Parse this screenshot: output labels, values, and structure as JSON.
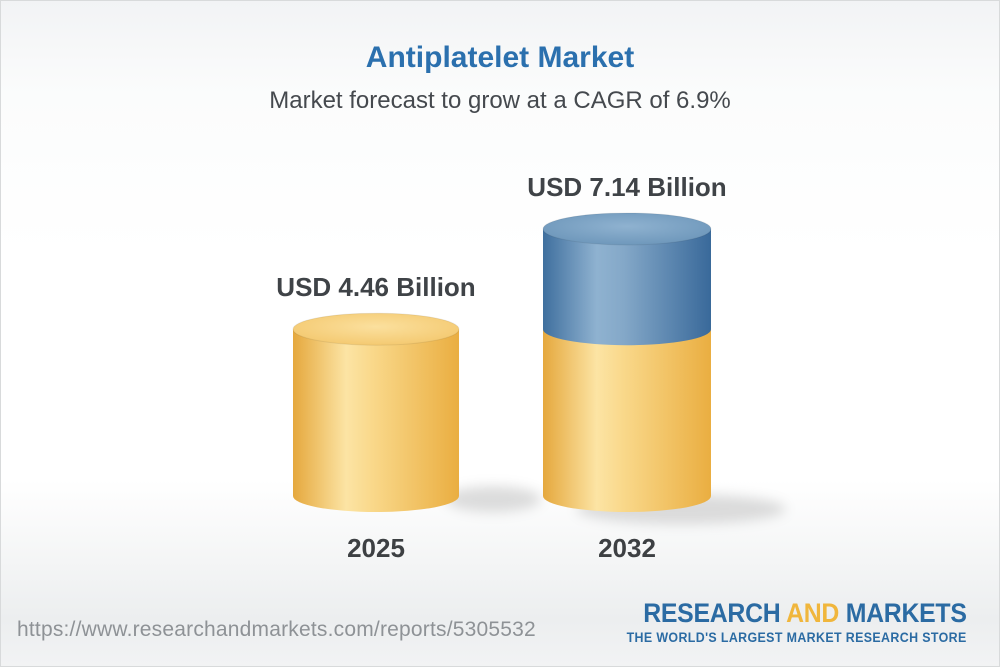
{
  "header": {
    "title": "Antiplatelet Market",
    "subtitle": "Market forecast to grow at a CAGR of 6.9%"
  },
  "chart_data": {
    "type": "bar",
    "subtype": "3d-cylinder-stacked",
    "title": "Antiplatelet Market",
    "subtitle": "Market forecast to grow at a CAGR of 6.9%",
    "unit": "USD Billion",
    "cagr_percent": 6.9,
    "categories": [
      "2025",
      "2032"
    ],
    "values": [
      4.46,
      7.14
    ],
    "value_labels": [
      "USD 4.46 Billion",
      "USD 7.14 Billion"
    ],
    "bars": [
      {
        "category": "2025",
        "segments": [
          {
            "palette": "yellow",
            "value": 4.46
          }
        ]
      },
      {
        "category": "2032",
        "segments": [
          {
            "palette": "yellow",
            "value": 4.46
          },
          {
            "palette": "blue",
            "value": 2.68
          }
        ]
      }
    ],
    "palette": {
      "yellow": {
        "body": [
          "#e5a83d",
          "#fce4a4",
          "#f9d88a",
          "#eaae41"
        ],
        "top": [
          "#fbe09e",
          "#f2c364"
        ]
      },
      "blue": {
        "body": [
          "#3f6f9e",
          "#8fb2d0",
          "#84a8c8",
          "#39699a"
        ],
        "top": [
          "#8fb2d0",
          "#6590b5"
        ]
      }
    },
    "axis": {
      "grid": false,
      "baseline_value": 0
    }
  },
  "footer": {
    "url": "https://www.researchandmarkets.com/reports/5305532",
    "logo": {
      "part1": "RESEARCH",
      "part2": "AND",
      "part3": "MARKETS",
      "tagline": "THE WORLD'S LARGEST MARKET RESEARCH STORE"
    }
  },
  "colors": {
    "title_blue": "#2b70ae",
    "text_dark": "#3f4347",
    "url_gray": "#8e9296",
    "logo_blue": "#2b6ba3",
    "logo_gold": "#f0b63c",
    "bar_yellow": "#f2c364",
    "bar_blue": "#6590b5"
  }
}
